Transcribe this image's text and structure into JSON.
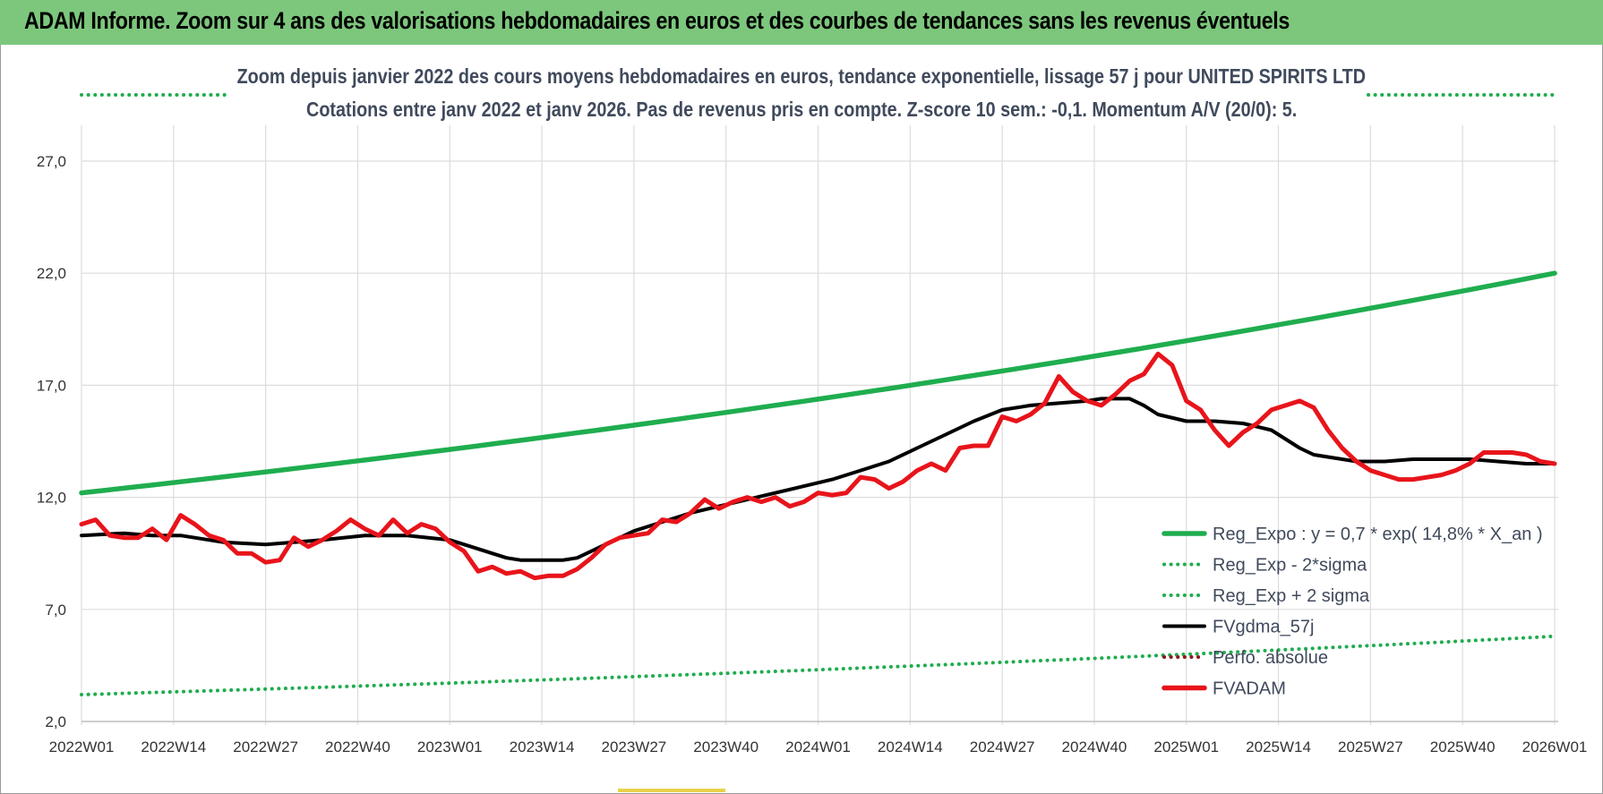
{
  "banner": {
    "title": "ADAM Informe. Zoom sur 4 ans des valorisations hebdomadaires en euros et des courbes de tendances sans les revenus éventuels"
  },
  "chart_data": {
    "type": "line",
    "title": "Zoom depuis janvier 2022 des cours moyens hebdomadaires en euros, tendance exponentielle, lissage 57 j pour UNITED SPIRITS LTD",
    "subtitle": "Cotations entre janv 2022 et janv 2026. Pas de revenus pris en compte. Z-score 10 sem.: -0,1. Momentum A/V (20/0): 5.",
    "xlabel": "",
    "ylabel": "",
    "x_ticks": [
      "2022W01",
      "2022W14",
      "2022W27",
      "2022W40",
      "2023W01",
      "2023W14",
      "2023W27",
      "2023W40",
      "2024W01",
      "2024W14",
      "2024W27",
      "2024W40",
      "2025W01",
      "2025W14",
      "2025W27",
      "2025W40",
      "2026W01"
    ],
    "x_range": [
      0,
      208
    ],
    "y_ticks": [
      "2,0",
      "7,0",
      "12,0",
      "17,0",
      "22,0",
      "27,0"
    ],
    "ylim": [
      2,
      29
    ],
    "grid": true,
    "legend_position": "bottom-right",
    "series": [
      {
        "name": "Reg_Expo : y = 0,7 * exp( 14,8% *  X_an )",
        "style": "solid",
        "color": "#1fad4f",
        "x": [
          0,
          208
        ],
        "values": [
          12.2,
          22.0
        ],
        "curve": "exponential"
      },
      {
        "name": "Reg_Exp - 2*sigma",
        "style": "dotted",
        "color": "#1fad4f",
        "x": [
          0,
          208
        ],
        "values": [
          3.2,
          5.8
        ],
        "curve": "exponential"
      },
      {
        "name": "Reg_Exp + 2 sigma",
        "style": "dotted",
        "color": "#1fad4f",
        "x": [
          0,
          208
        ],
        "values": [
          30.0,
          30.0
        ],
        "note_visible_segments": "partially hidden behind titles"
      },
      {
        "name": "FVgdma_57j",
        "style": "solid",
        "color": "#000000",
        "x": [
          0,
          6,
          10,
          14,
          20,
          26,
          30,
          34,
          40,
          46,
          52,
          54,
          56,
          58,
          60,
          62,
          64,
          66,
          68,
          70,
          72,
          74,
          76,
          78,
          82,
          86,
          90,
          94,
          98,
          102,
          106,
          110,
          114,
          118,
          122,
          126,
          130,
          134,
          138,
          142,
          144,
          146,
          148,
          150,
          152,
          156,
          160,
          164,
          168,
          170,
          172,
          174,
          176,
          180,
          184,
          188,
          192,
          196,
          200,
          204,
          208
        ],
        "values": [
          10.3,
          10.4,
          10.3,
          10.3,
          10.0,
          9.9,
          10.0,
          10.1,
          10.3,
          10.3,
          10.1,
          9.9,
          9.7,
          9.5,
          9.3,
          9.2,
          9.2,
          9.2,
          9.2,
          9.3,
          9.6,
          9.9,
          10.2,
          10.5,
          10.9,
          11.3,
          11.6,
          11.9,
          12.2,
          12.5,
          12.8,
          13.2,
          13.6,
          14.2,
          14.8,
          15.4,
          15.9,
          16.1,
          16.2,
          16.3,
          16.4,
          16.4,
          16.4,
          16.1,
          15.7,
          15.4,
          15.4,
          15.3,
          15.0,
          14.6,
          14.2,
          13.9,
          13.8,
          13.6,
          13.6,
          13.7,
          13.7,
          13.7,
          13.6,
          13.5,
          13.5
        ]
      },
      {
        "name": "Perfo. absolue",
        "style": "dotted",
        "color": "#8b1a1a",
        "x": [],
        "values": []
      },
      {
        "name": "FVADAM",
        "style": "solid",
        "color": "#e8141b",
        "x": [
          0,
          2,
          4,
          6,
          8,
          10,
          12,
          14,
          16,
          18,
          20,
          22,
          24,
          26,
          28,
          30,
          32,
          34,
          36,
          38,
          40,
          42,
          44,
          46,
          48,
          50,
          52,
          54,
          56,
          58,
          60,
          62,
          64,
          66,
          68,
          70,
          72,
          74,
          76,
          78,
          80,
          82,
          84,
          86,
          88,
          90,
          92,
          94,
          96,
          98,
          100,
          102,
          104,
          106,
          108,
          110,
          112,
          114,
          116,
          118,
          120,
          122,
          124,
          126,
          128,
          130,
          132,
          134,
          136,
          138,
          140,
          142,
          144,
          146,
          148,
          150,
          152,
          154,
          156,
          158,
          160,
          162,
          164,
          166,
          168,
          170,
          172,
          174,
          176,
          178,
          180,
          182,
          184,
          186,
          188,
          190,
          192,
          194,
          196,
          198,
          200,
          202,
          204,
          206,
          208
        ],
        "values": [
          10.8,
          11.0,
          10.3,
          10.2,
          10.2,
          10.6,
          10.1,
          11.2,
          10.8,
          10.3,
          10.1,
          9.5,
          9.5,
          9.1,
          9.2,
          10.2,
          9.8,
          10.1,
          10.5,
          11.0,
          10.6,
          10.3,
          11.0,
          10.4,
          10.8,
          10.6,
          10.0,
          9.6,
          8.7,
          8.9,
          8.6,
          8.7,
          8.4,
          8.5,
          8.5,
          8.8,
          9.3,
          9.9,
          10.2,
          10.3,
          10.4,
          11.0,
          10.9,
          11.3,
          11.9,
          11.5,
          11.8,
          12.0,
          11.8,
          12.0,
          11.6,
          11.8,
          12.2,
          12.1,
          12.2,
          12.9,
          12.8,
          12.4,
          12.7,
          13.2,
          13.5,
          13.2,
          14.2,
          14.3,
          14.3,
          15.6,
          15.4,
          15.7,
          16.2,
          17.4,
          16.7,
          16.3,
          16.1,
          16.6,
          17.2,
          17.5,
          18.4,
          17.9,
          16.3,
          15.9,
          15.0,
          14.3,
          14.9,
          15.3,
          15.9,
          16.1,
          16.3,
          16.0,
          15.0,
          14.2,
          13.6,
          13.2,
          13.0,
          12.8,
          12.8,
          12.9,
          13.0,
          13.2,
          13.5,
          14.0,
          14.0,
          14.0,
          13.9,
          13.6,
          13.5
        ]
      }
    ]
  }
}
